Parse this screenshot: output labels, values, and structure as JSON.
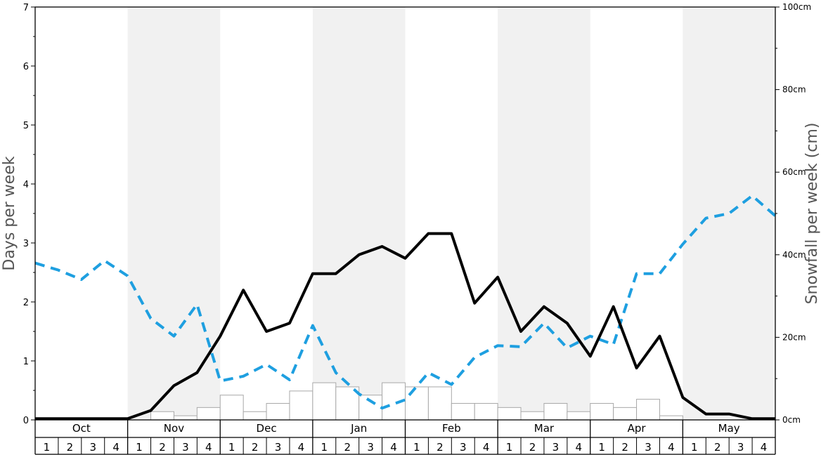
{
  "chart_data": {
    "type": "bar+line",
    "title": "",
    "ylabel": "Days per week",
    "y2label": "Snowfall per week (cm)",
    "ylim": [
      0,
      7
    ],
    "y2lim": [
      0,
      100
    ],
    "y_ticks": [
      "0",
      "1",
      "2",
      "3",
      "4",
      "5",
      "6",
      "7"
    ],
    "y2_ticks": [
      "0cm",
      "20cm",
      "40cm",
      "60cm",
      "80cm",
      "100cm"
    ],
    "y2_tick_values": [
      0,
      20,
      40,
      60,
      80,
      100
    ],
    "months": [
      "Oct",
      "Nov",
      "Dec",
      "Jan",
      "Feb",
      "Mar",
      "Apr",
      "May"
    ],
    "weeks": [
      "1",
      "2",
      "3",
      "4"
    ],
    "grid": false,
    "alternating_month_shading": true,
    "colors": {
      "snow_days_line": "#000000",
      "sunny_days_line": "#1e9fe0",
      "bar_fill": "#ffffff",
      "bar_stroke": "#a8a8a8",
      "month_shade": "#f1f1f1"
    },
    "series": [
      {
        "kind": "line",
        "axis": "left",
        "style": "solid",
        "values": [
          0.02,
          0.02,
          0.02,
          0.02,
          0.02,
          0.16,
          0.58,
          0.8,
          1.42,
          2.2,
          1.5,
          1.64,
          2.48,
          2.48,
          2.8,
          2.94,
          2.74,
          3.16,
          3.16,
          1.98,
          2.42,
          1.5,
          1.92,
          1.64,
          1.08,
          1.92,
          0.88,
          1.42,
          0.38,
          0.1,
          0.1,
          0.02,
          0.02
        ]
      },
      {
        "kind": "line",
        "axis": "left",
        "style": "dashed",
        "values": [
          2.66,
          2.54,
          2.38,
          2.7,
          2.44,
          1.72,
          1.42,
          1.96,
          0.66,
          0.74,
          0.94,
          0.68,
          1.6,
          0.8,
          0.44,
          0.2,
          0.34,
          0.8,
          0.6,
          1.06,
          1.26,
          1.24,
          1.64,
          1.22,
          1.42,
          1.28,
          2.48,
          2.48,
          2.98,
          3.42,
          3.5,
          3.8,
          3.46
        ]
      },
      {
        "kind": "bar",
        "axis": "right",
        "values": [
          0,
          0,
          0,
          0,
          0,
          2,
          1,
          3,
          6,
          2,
          4,
          7,
          9,
          8,
          6,
          9,
          8,
          8,
          4,
          4,
          3,
          2,
          4,
          2,
          4,
          3,
          5,
          1,
          0,
          0,
          0,
          0
        ]
      }
    ]
  }
}
